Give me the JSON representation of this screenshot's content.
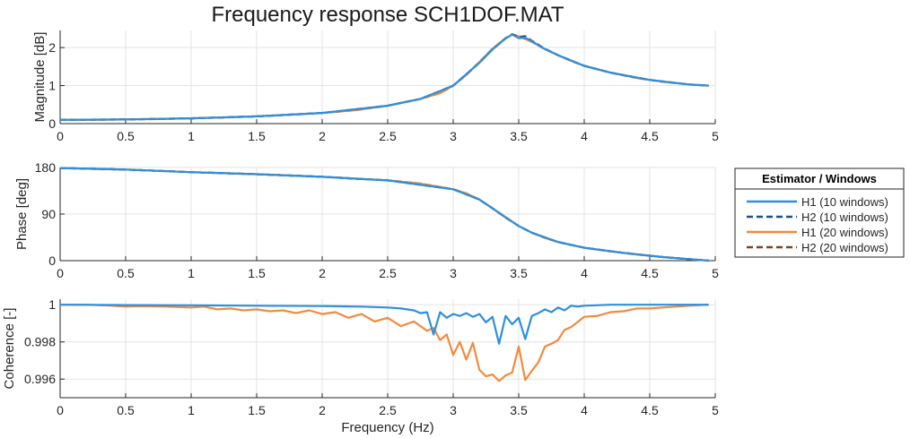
{
  "chart_data": {
    "type": "line",
    "title": "Frequency response SCH1DOF.MAT",
    "xlabel": "Frequency (Hz)",
    "xlim": [
      0,
      5
    ],
    "xticks": [
      "0",
      "0.5",
      "1",
      "1.5",
      "2",
      "2.5",
      "3",
      "3.5",
      "4",
      "4.5",
      "5"
    ],
    "legend": {
      "title": "Estimator / Windows",
      "placement": "right",
      "entries": [
        "H1 (10 windows)",
        "H2 (10 windows)",
        "H1 (20 windows)",
        "H2 (20 windows)"
      ]
    },
    "colors": {
      "h1_10": "#2f8fdc",
      "h2_10": "#1c4f86",
      "h1_20": "#f28a3c",
      "h2_20": "#7a4420"
    },
    "grid": true,
    "panels": [
      {
        "name": "magnitude",
        "ylabel": "Magnitude [dB]",
        "ylim": [
          0,
          2.45
        ],
        "yticks": [
          0,
          1,
          2
        ],
        "ytick_labels": [
          "0",
          "1",
          "2"
        ],
        "series": [
          {
            "name": "H2 (20 windows)",
            "style": "dashed",
            "x": [
              0,
              0.25,
              0.5,
              0.75,
              1,
              1.25,
              1.5,
              1.75,
              2,
              2.25,
              2.5,
              2.75,
              2.9,
              3,
              3.1,
              3.2,
              3.3,
              3.4,
              3.45,
              3.5,
              3.6,
              3.7,
              3.8,
              3.9,
              4,
              4.2,
              4.4,
              4.6,
              4.8,
              4.95
            ],
            "y": [
              0.1,
              0.1,
              0.11,
              0.12,
              0.14,
              0.16,
              0.19,
              0.23,
              0.28,
              0.35,
              0.47,
              0.65,
              0.8,
              1.0,
              1.28,
              1.62,
              1.97,
              2.25,
              2.34,
              2.3,
              2.15,
              1.96,
              1.8,
              1.65,
              1.52,
              1.34,
              1.2,
              1.1,
              1.03,
              1.0
            ]
          },
          {
            "name": "H1 (20 windows)",
            "style": "solid",
            "x": [
              0,
              0.25,
              0.5,
              0.75,
              1,
              1.25,
              1.5,
              1.75,
              2,
              2.25,
              2.5,
              2.75,
              2.9,
              3,
              3.1,
              3.2,
              3.3,
              3.4,
              3.45,
              3.5,
              3.6,
              3.7,
              3.8,
              3.9,
              4,
              4.2,
              4.4,
              4.6,
              4.8,
              4.95
            ],
            "y": [
              0.1,
              0.1,
              0.11,
              0.12,
              0.14,
              0.16,
              0.19,
              0.23,
              0.28,
              0.35,
              0.47,
              0.65,
              0.8,
              1.0,
              1.28,
              1.62,
              1.97,
              2.25,
              2.34,
              2.3,
              2.15,
              1.96,
              1.8,
              1.65,
              1.52,
              1.34,
              1.2,
              1.1,
              1.03,
              1.0
            ]
          },
          {
            "name": "H2 (10 windows)",
            "style": "dashed",
            "x": [
              0,
              0.5,
              1,
              1.5,
              2,
              2.5,
              2.75,
              3,
              3.2,
              3.3,
              3.4,
              3.45,
              3.5,
              3.55,
              3.6,
              3.7,
              3.8,
              4,
              4.2,
              4.5,
              4.8,
              4.95
            ],
            "y": [
              0.1,
              0.11,
              0.14,
              0.19,
              0.28,
              0.47,
              0.65,
              1.0,
              1.6,
              1.95,
              2.24,
              2.35,
              2.28,
              2.3,
              2.18,
              1.97,
              1.8,
              1.52,
              1.34,
              1.15,
              1.03,
              1.0
            ]
          },
          {
            "name": "H1 (10 windows)",
            "style": "solid",
            "x": [
              0,
              0.5,
              1,
              1.5,
              2,
              2.5,
              2.75,
              3,
              3.2,
              3.3,
              3.4,
              3.45,
              3.5,
              3.55,
              3.6,
              3.7,
              3.8,
              4,
              4.2,
              4.5,
              4.8,
              4.95
            ],
            "y": [
              0.1,
              0.11,
              0.14,
              0.19,
              0.28,
              0.47,
              0.65,
              1.0,
              1.6,
              1.95,
              2.24,
              2.34,
              2.25,
              2.26,
              2.17,
              1.96,
              1.8,
              1.52,
              1.34,
              1.15,
              1.03,
              1.0
            ]
          }
        ]
      },
      {
        "name": "phase",
        "ylabel": "Phase [deg]",
        "ylim": [
          0,
          180
        ],
        "yticks": [
          0,
          90,
          180
        ],
        "ytick_labels": [
          "0",
          "90",
          "180"
        ],
        "series": [
          {
            "name": "H2 (20 windows)",
            "style": "dashed",
            "x": [
              0,
              0.5,
              1,
              1.5,
              2,
              2.5,
              2.75,
              3,
              3.1,
              3.2,
              3.3,
              3.4,
              3.5,
              3.6,
              3.7,
              3.8,
              4,
              4.2,
              4.4,
              4.6,
              4.8,
              4.95
            ],
            "y": [
              179,
              176,
              171,
              167,
              162,
              155,
              149,
              138,
              130,
              118,
              101,
              83,
              67,
              54,
              44,
              36,
              25,
              18,
              12,
              7,
              3,
              0
            ]
          },
          {
            "name": "H1 (20 windows)",
            "style": "solid",
            "x": [
              0,
              0.5,
              1,
              1.5,
              2,
              2.5,
              2.75,
              3,
              3.1,
              3.2,
              3.3,
              3.4,
              3.5,
              3.6,
              3.7,
              3.8,
              4,
              4.2,
              4.4,
              4.6,
              4.8,
              4.95
            ],
            "y": [
              179,
              176,
              171,
              167,
              162,
              155,
              149,
              138,
              130,
              118,
              101,
              83,
              67,
              54,
              44,
              36,
              25,
              18,
              12,
              7,
              3,
              0
            ]
          },
          {
            "name": "H2 (10 windows)",
            "style": "dashed",
            "x": [
              0,
              0.5,
              1,
              1.5,
              2,
              2.5,
              3,
              3.2,
              3.3,
              3.4,
              3.5,
              3.6,
              3.8,
              4,
              4.3,
              4.6,
              4.95
            ],
            "y": [
              179,
              176,
              171,
              167,
              162,
              155,
              138,
              118,
              101,
              84,
              67,
              54,
              36,
              25,
              15,
              7,
              0
            ]
          },
          {
            "name": "H1 (10 windows)",
            "style": "solid",
            "x": [
              0,
              0.5,
              1,
              1.5,
              2,
              2.5,
              3,
              3.2,
              3.3,
              3.4,
              3.5,
              3.6,
              3.8,
              4,
              4.3,
              4.6,
              4.95
            ],
            "y": [
              179,
              176,
              171,
              167,
              162,
              155,
              138,
              118,
              101,
              84,
              67,
              54,
              36,
              25,
              15,
              7,
              0
            ]
          }
        ]
      },
      {
        "name": "coherence",
        "ylabel": "Coherence [-]",
        "ylim": [
          0.995,
          1.0003
        ],
        "yticks": [
          0.996,
          0.998,
          1.0
        ],
        "ytick_labels": [
          "0.996",
          "0.998",
          "1"
        ],
        "series": [
          {
            "name": "H1 (20 windows)",
            "style": "solid",
            "x": [
              0,
              0.2,
              0.4,
              0.5,
              0.6,
              0.8,
              1,
              1.1,
              1.2,
              1.3,
              1.4,
              1.5,
              1.6,
              1.7,
              1.8,
              1.9,
              2,
              2.1,
              2.2,
              2.3,
              2.4,
              2.5,
              2.6,
              2.7,
              2.8,
              2.85,
              2.9,
              2.95,
              3,
              3.05,
              3.1,
              3.15,
              3.2,
              3.25,
              3.3,
              3.35,
              3.4,
              3.45,
              3.5,
              3.55,
              3.6,
              3.65,
              3.7,
              3.75,
              3.8,
              3.85,
              3.9,
              4,
              4.1,
              4.2,
              4.3,
              4.4,
              4.5,
              4.6,
              4.7,
              4.8,
              4.95
            ],
            "y": [
              1.0,
              1.0,
              0.99995,
              0.9999,
              0.99992,
              0.9999,
              0.99985,
              0.9999,
              0.99975,
              0.9998,
              0.9997,
              0.99975,
              0.99965,
              0.9997,
              0.99955,
              0.9997,
              0.9995,
              0.9996,
              0.9993,
              0.9995,
              0.9991,
              0.9993,
              0.99885,
              0.9991,
              0.9986,
              0.99875,
              0.9981,
              0.9984,
              0.9973,
              0.998,
              0.99705,
              0.99795,
              0.9965,
              0.99615,
              0.99625,
              0.9959,
              0.9962,
              0.99635,
              0.99775,
              0.99595,
              0.99645,
              0.9969,
              0.99775,
              0.9979,
              0.9981,
              0.99865,
              0.9988,
              0.99935,
              0.9994,
              0.9996,
              0.99965,
              0.9998,
              0.9998,
              0.99985,
              0.9999,
              0.99995,
              1.0
            ]
          },
          {
            "name": "H1 (10 windows)",
            "style": "solid",
            "x": [
              0,
              0.5,
              1,
              1.5,
              2,
              2.3,
              2.5,
              2.6,
              2.7,
              2.75,
              2.8,
              2.85,
              2.9,
              2.95,
              3,
              3.05,
              3.1,
              3.15,
              3.2,
              3.25,
              3.3,
              3.35,
              3.4,
              3.45,
              3.5,
              3.55,
              3.6,
              3.65,
              3.7,
              3.75,
              3.8,
              3.85,
              3.9,
              3.95,
              4,
              4.1,
              4.2,
              4.4,
              4.6,
              4.8,
              4.95
            ],
            "y": [
              1.0,
              0.99998,
              0.99997,
              0.99995,
              0.99993,
              0.9999,
              0.99985,
              0.9998,
              0.9997,
              0.99955,
              0.9996,
              0.9984,
              0.9996,
              0.9993,
              0.9995,
              0.9994,
              0.99955,
              0.99935,
              0.9995,
              0.99905,
              0.99935,
              0.9979,
              0.9994,
              0.99895,
              0.9993,
              0.99815,
              0.9994,
              0.99955,
              0.99975,
              0.9996,
              0.99985,
              0.9997,
              0.99995,
              0.9999,
              0.99995,
              0.99997,
              1.0,
              1.0,
              1.0,
              1.0,
              1.0
            ]
          }
        ]
      }
    ]
  }
}
